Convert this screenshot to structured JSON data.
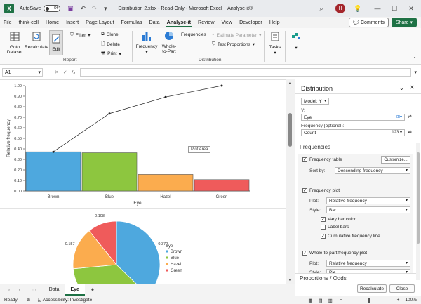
{
  "titlebar": {
    "autosave_label": "AutoSave",
    "autosave_state": "Off",
    "title": "Distribution 2.xlsx - Read-Only - Microsoft Excel + Analyse-it®",
    "avatar_initial": "H"
  },
  "menu": {
    "tabs": [
      "File",
      "think-cell",
      "Home",
      "Insert",
      "Page Layout",
      "Formulas",
      "Data",
      "Analyse-it",
      "Review",
      "View",
      "Developer",
      "Help"
    ],
    "active": "Analyse-it",
    "comments_label": "Comments",
    "share_label": "Share"
  },
  "ribbon": {
    "goto_dataset": "Goto\nDataset",
    "recalculate": "Recalculate",
    "edit": "Edit",
    "filter": "Filter",
    "clone": "Clone",
    "delete": "Delete",
    "print": "Print",
    "report_group": "Report",
    "frequency": "Frequency",
    "whole_to_part": "Whole-\nto-Part",
    "frequencies": "Frequencies",
    "estimate_parameter": "Estimate Parameter",
    "test_proportions": "Test Proportions",
    "distribution_group": "Distribution",
    "tasks": "Tasks"
  },
  "formula_bar": {
    "cell_ref": "A1",
    "fx_label": "fx",
    "value": ""
  },
  "chart_data": [
    {
      "type": "bar",
      "categories": [
        "Brown",
        "Blue",
        "Hazel",
        "Green"
      ],
      "values": [
        0.372,
        0.363,
        0.157,
        0.108
      ],
      "cumulative": [
        0.372,
        0.735,
        0.892,
        1.0
      ],
      "xlabel": "Eye",
      "ylabel": "Relative frequency",
      "ylim": [
        0,
        1.0
      ],
      "yticks": [
        "0.00",
        "0.10",
        "0.20",
        "0.30",
        "0.40",
        "0.50",
        "0.60",
        "0.70",
        "0.80",
        "0.90",
        "1.00"
      ],
      "colors": [
        "#4ea8de",
        "#8dc63f",
        "#fbac4e",
        "#ef5b5b"
      ],
      "tooltip": "Plot Area"
    },
    {
      "type": "pie",
      "categories": [
        "Brown",
        "Blue",
        "Hazel",
        "Green"
      ],
      "values": [
        0.372,
        0.363,
        0.157,
        0.108
      ],
      "data_labels": [
        "0.372",
        "",
        "0.157",
        "0.108"
      ],
      "legend_title": "Eye",
      "colors": [
        "#4ea8de",
        "#8dc63f",
        "#fbac4e",
        "#ef5b5b"
      ]
    }
  ],
  "sheet_tabs": {
    "tabs": [
      "Data",
      "Eye"
    ],
    "active": "Eye",
    "add": "+"
  },
  "status": {
    "ready": "Ready",
    "accessibility": "Accessibility: Investigate",
    "zoom": "100%"
  },
  "pane": {
    "title": "Distribution",
    "model": "Model: Y",
    "y_label": "Y:",
    "y_value": "Eye",
    "freq_label": "Frequency (optional):",
    "freq_value": "Count",
    "freq_badge": "123",
    "section_frequencies": "Frequencies",
    "freq_table": "Frequency table",
    "customize": "Customize...",
    "sort_by_label": "Sort by:",
    "sort_by_value": "Descending frequency",
    "freq_plot": "Frequency plot",
    "plot_label": "Plot:",
    "plot_value": "Relative frequency",
    "style_label": "Style:",
    "style_value": "Bar",
    "vary_bar_color": "Vary bar color",
    "label_bars": "Label bars",
    "cum_freq_line": "Cumulative frequency line",
    "whole_to_part_plot": "Whole-to-part frequency plot",
    "plot2_value": "Relative frequency",
    "style2_value": "Pie",
    "section_proportions": "Proportions / Odds",
    "recalculate_btn": "Recalculate",
    "close_btn": "Close"
  }
}
